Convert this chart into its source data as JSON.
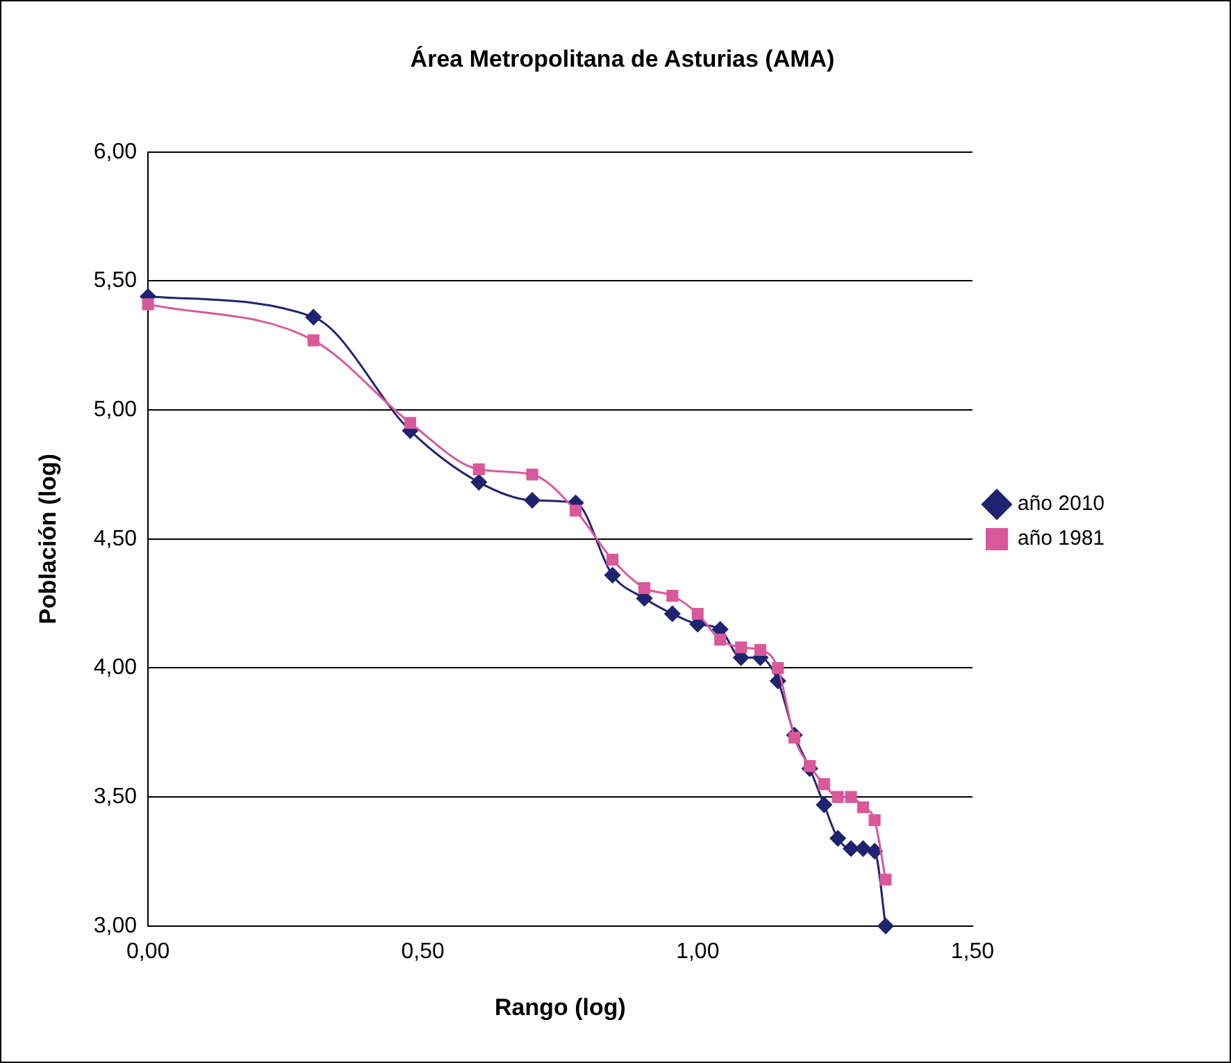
{
  "chart_data": {
    "type": "line",
    "title": "Área Metropolitana de Asturias (AMA)",
    "xlabel": "Rango (log)",
    "ylabel": "Población (log)",
    "x": [
      0,
      0.301,
      0.477,
      0.602,
      0.699,
      0.778,
      0.845,
      0.903,
      0.954,
      1.0,
      1.041,
      1.079,
      1.114,
      1.146,
      1.176,
      1.204,
      1.23,
      1.255,
      1.279,
      1.301,
      1.322,
      1.342
    ],
    "series": [
      {
        "name": "año 2010",
        "color": "#1f2470",
        "marker": "diamond",
        "values": [
          5.44,
          5.36,
          4.92,
          4.72,
          4.65,
          4.64,
          4.36,
          4.27,
          4.21,
          4.17,
          4.15,
          4.04,
          4.04,
          3.95,
          3.74,
          3.61,
          3.47,
          3.34,
          3.3,
          3.3,
          3.29,
          3.0
        ]
      },
      {
        "name": "año 1981",
        "color": "#d9589a",
        "marker": "square",
        "values": [
          5.41,
          5.27,
          4.95,
          4.77,
          4.75,
          4.61,
          4.42,
          4.31,
          4.28,
          4.21,
          4.11,
          4.08,
          4.07,
          4.0,
          3.73,
          3.62,
          3.55,
          3.5,
          3.5,
          3.46,
          3.41,
          3.18
        ]
      }
    ],
    "xlim": [
      0,
      1.5
    ],
    "xticks": [
      {
        "value": 0,
        "label": "0,00"
      },
      {
        "value": 0.5,
        "label": "0,50"
      },
      {
        "value": 1,
        "label": "1,00"
      },
      {
        "value": 1.5,
        "label": "1,50"
      }
    ],
    "ylim": [
      3,
      6
    ],
    "yticks": [
      {
        "value": 3,
        "label": "3,00"
      },
      {
        "value": 3.5,
        "label": "3,50"
      },
      {
        "value": 4,
        "label": "4,00"
      },
      {
        "value": 4.5,
        "label": "4,50"
      },
      {
        "value": 5,
        "label": "5,00"
      },
      {
        "value": 5.5,
        "label": "5,50"
      },
      {
        "value": 6,
        "label": "6,00"
      }
    ],
    "grid": "y",
    "legend": "right",
    "line_style": "solid"
  }
}
